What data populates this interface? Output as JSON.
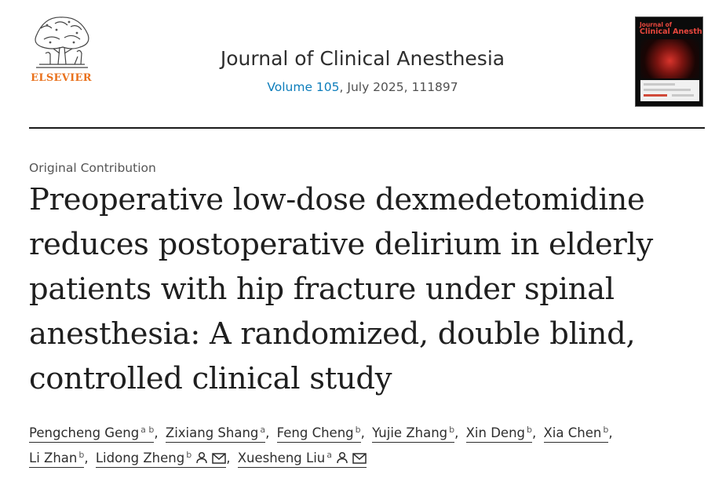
{
  "header": {
    "publisher": "ELSEVIER",
    "journal_title": "Journal of Clinical Anesthesia",
    "volume_label": "Volume 105",
    "issue_rest": ", July 2025, 111897",
    "cover_title_line1": "Journal of",
    "cover_title_line2": "Clinical Anesthesia"
  },
  "article": {
    "type": "Original Contribution",
    "title": "Preoperative low-dose dexmedetomidine reduces postoperative delirium in elderly patients with hip fracture under spinal anesthesia: A randomized, double blind, controlled clinical study"
  },
  "authors": [
    {
      "name": "Pengcheng Geng",
      "aff": "a b"
    },
    {
      "name": "Zixiang Shang",
      "aff": "a"
    },
    {
      "name": "Feng Cheng",
      "aff": "b"
    },
    {
      "name": "Yujie Zhang",
      "aff": "b"
    },
    {
      "name": "Xin Deng",
      "aff": "b"
    },
    {
      "name": "Xia Chen",
      "aff": "b"
    },
    {
      "name": "Li Zhan",
      "aff": "b"
    },
    {
      "name": "Lidong Zheng",
      "aff": "b"
    },
    {
      "name": "Xuesheng Liu",
      "aff": "a"
    }
  ],
  "colors": {
    "publisher_orange": "#e9711c",
    "link_blue": "#0c7dbb",
    "text": "#1f1f1f"
  },
  "icons": [
    "elsevier-tree-logo",
    "person-icon",
    "envelope-icon"
  ]
}
